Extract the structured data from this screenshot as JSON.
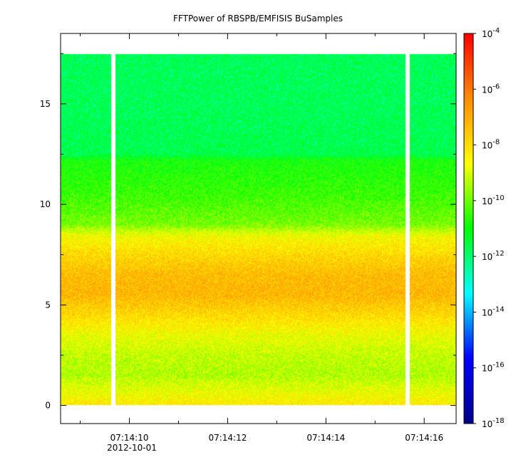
{
  "chart_data": {
    "type": "heatmap",
    "title": "FFTPower of RBSPB/EMFISIS  BuSamples",
    "x_axis": {
      "date_label": "2012-10-01",
      "tick_labels": [
        "07:14:10",
        "07:14:12",
        "07:14:14",
        "07:14:16"
      ],
      "tick_seconds": [
        10,
        12,
        14,
        16
      ],
      "minor_tick_seconds": [
        9,
        11,
        13,
        15
      ],
      "xlim_seconds": [
        8.6,
        16.65
      ]
    },
    "y_axis": {
      "tick_labels": [
        "0",
        "5",
        "10",
        "15"
      ],
      "tick_values": [
        0,
        5,
        10,
        15
      ],
      "minor_ticks": [
        2.5,
        7.5,
        12.5,
        17.5
      ],
      "ylim": [
        -0.9,
        18.5
      ]
    },
    "colorbar": {
      "scale": "log",
      "range": [
        1e-18,
        0.0001
      ],
      "tick_exponents": [
        -4,
        -6,
        -8,
        -10,
        -12,
        -14,
        -16,
        -18
      ],
      "tick_labels": [
        "10",
        "10",
        "10",
        "10",
        "10",
        "10",
        "10",
        "10"
      ],
      "tick_superscripts": [
        "-4",
        "-6",
        "-8",
        "-10",
        "-12",
        "-14",
        "-16",
        "-18"
      ],
      "colormap": [
        "#00008b",
        "#0000ff",
        "#00ffff",
        "#00ff00",
        "#ffff00",
        "#ff8c00",
        "#ff0000"
      ]
    },
    "data_extent": {
      "y_min": 0,
      "y_max": 17.5
    },
    "data_gaps_seconds": [
      9.67,
      15.67
    ],
    "power_profile_log10": [
      {
        "y": 0.0,
        "log_power": -8.2
      },
      {
        "y": 0.45,
        "log_power": -8.6
      },
      {
        "y": 1.5,
        "log_power": -9.4
      },
      {
        "y": 2.5,
        "log_power": -9.2
      },
      {
        "y": 3.5,
        "log_power": -8.7
      },
      {
        "y": 4.5,
        "log_power": -7.9
      },
      {
        "y": 5.5,
        "log_power": -7.2
      },
      {
        "y": 6.5,
        "log_power": -7.3
      },
      {
        "y": 7.5,
        "log_power": -7.9
      },
      {
        "y": 8.4,
        "log_power": -8.6
      },
      {
        "y": 9.0,
        "log_power": -9.9
      },
      {
        "y": 10.5,
        "log_power": -10.5
      },
      {
        "y": 12.2,
        "log_power": -10.9
      },
      {
        "y": 12.5,
        "log_power": -11.7
      },
      {
        "y": 15.0,
        "log_power": -11.8
      },
      {
        "y": 17.5,
        "log_power": -11.8
      }
    ]
  }
}
